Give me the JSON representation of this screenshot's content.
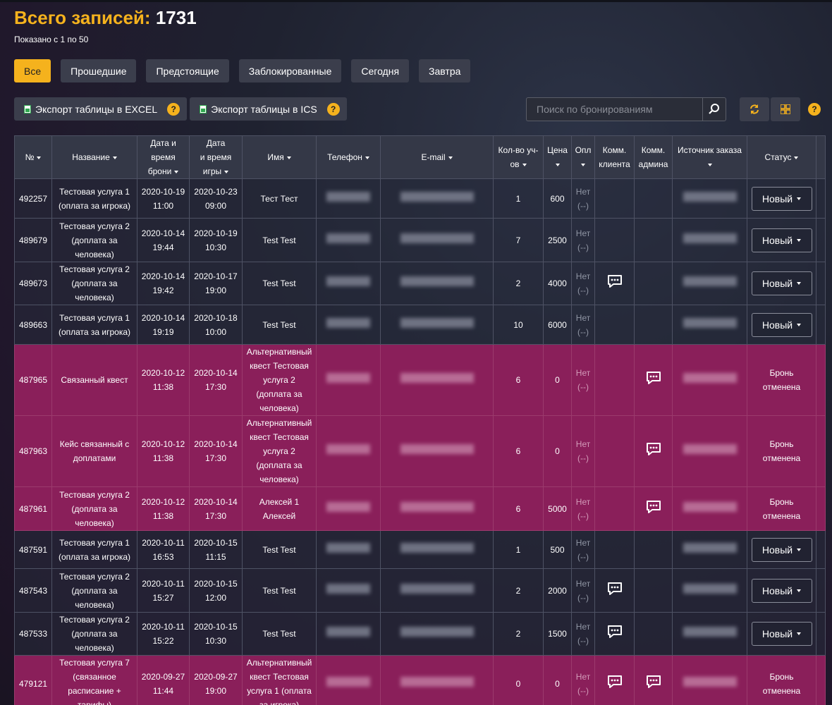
{
  "header": {
    "title_prefix": "Всего записей:",
    "total": "1731",
    "shown": "Показано с 1 по 50"
  },
  "filters": [
    "Все",
    "Прошедшие",
    "Предстоящие",
    "Заблокированные",
    "Сегодня",
    "Завтра"
  ],
  "export": {
    "excel": "Экспорт таблицы в EXCEL",
    "ics": "Экспорт таблицы в ICS",
    "help": "?"
  },
  "search": {
    "placeholder": "Поиск по бронированиям"
  },
  "colors": {
    "accent": "#f5b21d",
    "cancel_row": "#8a1f5a"
  },
  "icons": [
    "file-icon",
    "help-icon",
    "search-icon",
    "refresh-icon",
    "grid-icon",
    "chat-icon"
  ],
  "columns": {
    "num": "№",
    "name": "Название",
    "booked_l1": "Дата и",
    "booked_l2": "время",
    "booked_l3": "брони",
    "game_l1": "Дата",
    "game_l2": "и время",
    "game_l3": "игры",
    "client": "Имя",
    "phone": "Телефон",
    "email": "E-mail",
    "count_l1": "Кол-во уч-",
    "count_l2": "ов",
    "price": "Цена",
    "paid": "Опл",
    "cc_l1": "Комм.",
    "cc_l2": "клиента",
    "ca_l1": "Комм.",
    "ca_l2": "админа",
    "source": "Источник заказа",
    "status": "Статус"
  },
  "rows": [
    {
      "id": "492257",
      "name": [
        "Тестовая услуга 1",
        "(оплата за игрока)"
      ],
      "booked": [
        "2020-10-19",
        "11:00"
      ],
      "game": [
        "2020-10-23",
        "09:00"
      ],
      "client": [
        "Тест Тест"
      ],
      "count": "1",
      "price": "600",
      "paid": [
        "Нет",
        "(--)"
      ],
      "cc": false,
      "ca": false,
      "cancelled": false,
      "status": "Новый"
    },
    {
      "id": "489679",
      "name": [
        "Тестовая услуга 2",
        "(доплата за",
        "человека)"
      ],
      "booked": [
        "2020-10-14",
        "19:44"
      ],
      "game": [
        "2020-10-19",
        "10:30"
      ],
      "client": [
        "Test Test"
      ],
      "count": "7",
      "price": "2500",
      "paid": [
        "Нет",
        "(--)"
      ],
      "cc": false,
      "ca": false,
      "cancelled": false,
      "status": "Новый"
    },
    {
      "id": "489673",
      "name": [
        "Тестовая услуга 2",
        "(доплата за",
        "человека)"
      ],
      "booked": [
        "2020-10-14",
        "19:42"
      ],
      "game": [
        "2020-10-17",
        "19:00"
      ],
      "client": [
        "Test Test"
      ],
      "count": "2",
      "price": "4000",
      "paid": [
        "Нет",
        "(--)"
      ],
      "cc": true,
      "ca": false,
      "cancelled": false,
      "status": "Новый"
    },
    {
      "id": "489663",
      "name": [
        "Тестовая услуга 1",
        "(оплата за игрока)"
      ],
      "booked": [
        "2020-10-14",
        "19:19"
      ],
      "game": [
        "2020-10-18",
        "10:00"
      ],
      "client": [
        "Test Test"
      ],
      "count": "10",
      "price": "6000",
      "paid": [
        "Нет",
        "(--)"
      ],
      "cc": false,
      "ca": false,
      "cancelled": false,
      "status": "Новый"
    },
    {
      "id": "487965",
      "name": [
        "Связанный квест"
      ],
      "booked": [
        "2020-10-12",
        "11:38"
      ],
      "game": [
        "2020-10-14",
        "17:30"
      ],
      "client": [
        "Альтернативный",
        "квест Тестовая",
        "услуга 2",
        "(доплата за",
        "человека)"
      ],
      "count": "6",
      "price": "0",
      "paid": [
        "Нет",
        "(--)"
      ],
      "cc": false,
      "ca": true,
      "cancelled": true,
      "status_lines": [
        "Бронь",
        "отменена"
      ]
    },
    {
      "id": "487963",
      "name": [
        "Кейс связанный с",
        "доплатами"
      ],
      "booked": [
        "2020-10-12",
        "11:38"
      ],
      "game": [
        "2020-10-14",
        "17:30"
      ],
      "client": [
        "Альтернативный",
        "квест Тестовая",
        "услуга 2",
        "(доплата за",
        "человека)"
      ],
      "count": "6",
      "price": "0",
      "paid": [
        "Нет",
        "(--)"
      ],
      "cc": false,
      "ca": true,
      "cancelled": true,
      "status_lines": [
        "Бронь",
        "отменена"
      ]
    },
    {
      "id": "487961",
      "name": [
        "Тестовая услуга 2",
        "(доплата за",
        "человека)"
      ],
      "booked": [
        "2020-10-12",
        "11:38"
      ],
      "game": [
        "2020-10-14",
        "17:30"
      ],
      "client": [
        "Алексей 1",
        "Алексей"
      ],
      "count": "6",
      "price": "5000",
      "paid": [
        "Нет",
        "(--)"
      ],
      "cc": false,
      "ca": true,
      "cancelled": true,
      "status_lines": [
        "Бронь",
        "отменена"
      ]
    },
    {
      "id": "487591",
      "name": [
        "Тестовая услуга 1",
        "(оплата за игрока)"
      ],
      "booked": [
        "2020-10-11",
        "16:53"
      ],
      "game": [
        "2020-10-15",
        "11:15"
      ],
      "client": [
        "Test Test"
      ],
      "count": "1",
      "price": "500",
      "paid": [
        "Нет",
        "(--)"
      ],
      "cc": false,
      "ca": false,
      "cancelled": false,
      "status": "Новый"
    },
    {
      "id": "487543",
      "name": [
        "Тестовая услуга 2",
        "(доплата за",
        "человека)"
      ],
      "booked": [
        "2020-10-11",
        "15:27"
      ],
      "game": [
        "2020-10-15",
        "12:00"
      ],
      "client": [
        "Test Test"
      ],
      "count": "2",
      "price": "2000",
      "paid": [
        "Нет",
        "(--)"
      ],
      "cc": true,
      "ca": false,
      "cancelled": false,
      "status": "Новый"
    },
    {
      "id": "487533",
      "name": [
        "Тестовая услуга 2",
        "(доплата за",
        "человека)"
      ],
      "booked": [
        "2020-10-11",
        "15:22"
      ],
      "game": [
        "2020-10-15",
        "10:30"
      ],
      "client": [
        "Test Test"
      ],
      "count": "2",
      "price": "1500",
      "paid": [
        "Нет",
        "(--)"
      ],
      "cc": true,
      "ca": false,
      "cancelled": false,
      "status": "Новый"
    },
    {
      "id": "479121",
      "name": [
        "Тестовая услуга 7",
        "(связанное",
        "расписание +",
        "тарифы)"
      ],
      "booked": [
        "2020-09-27",
        "11:44"
      ],
      "game": [
        "2020-09-27",
        "19:00"
      ],
      "client": [
        "Альтернативный",
        "квест Тестовая",
        "услуга 1 (оплата",
        "за игрока)"
      ],
      "count": "0",
      "price": "0",
      "paid": [
        "Нет",
        "(--)"
      ],
      "cc": true,
      "ca": true,
      "cancelled": true,
      "status_lines": [
        "Бронь",
        "отменена"
      ]
    }
  ]
}
